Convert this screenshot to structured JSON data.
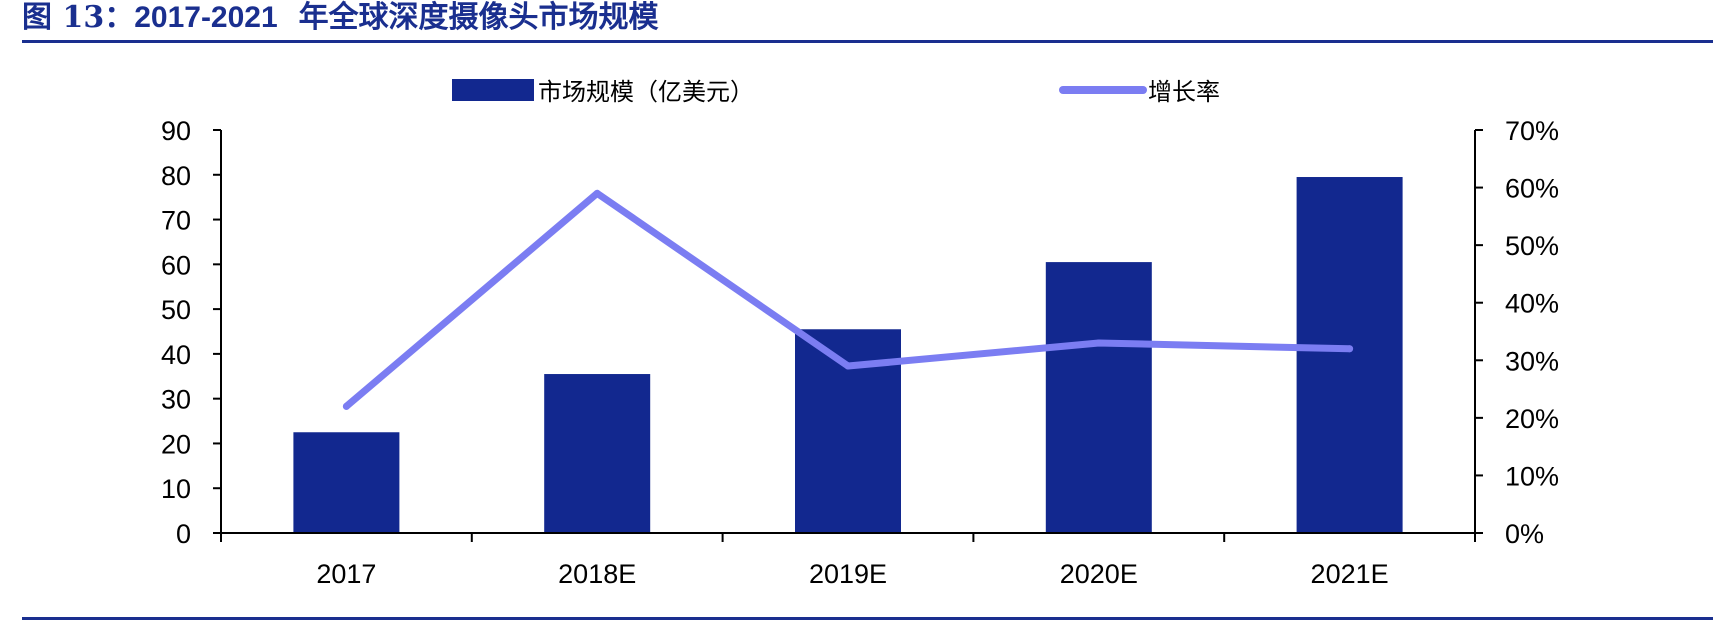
{
  "figure": {
    "label": "图 13：",
    "year_range": "2017-2021",
    "title": "年全球深度摄像头市场规模"
  },
  "colors": {
    "bar": "#12288f",
    "line": "#7b7df2",
    "title": "#1a2f8f",
    "axis": "#000000"
  },
  "chart_data": {
    "type": "bar+line",
    "categories": [
      "2017",
      "2018E",
      "2019E",
      "2020E",
      "2021E"
    ],
    "series": [
      {
        "name": "市场规模（亿美元）",
        "type": "bar",
        "axis": "left",
        "values": [
          22.5,
          35.5,
          45.5,
          60.5,
          79.5
        ]
      },
      {
        "name": "增长率",
        "type": "line",
        "axis": "right",
        "values": [
          0.22,
          0.59,
          0.29,
          0.33,
          0.32
        ]
      }
    ],
    "left_axis": {
      "ylim": [
        0,
        90
      ],
      "ticks": [
        "0",
        "10",
        "20",
        "30",
        "40",
        "50",
        "60",
        "70",
        "80",
        "90"
      ]
    },
    "right_axis": {
      "ylim": [
        0,
        0.7
      ],
      "ticks": [
        "0%",
        "10%",
        "20%",
        "30%",
        "40%",
        "50%",
        "60%",
        "70%"
      ]
    },
    "legend_position": "top-center",
    "grid": false
  }
}
